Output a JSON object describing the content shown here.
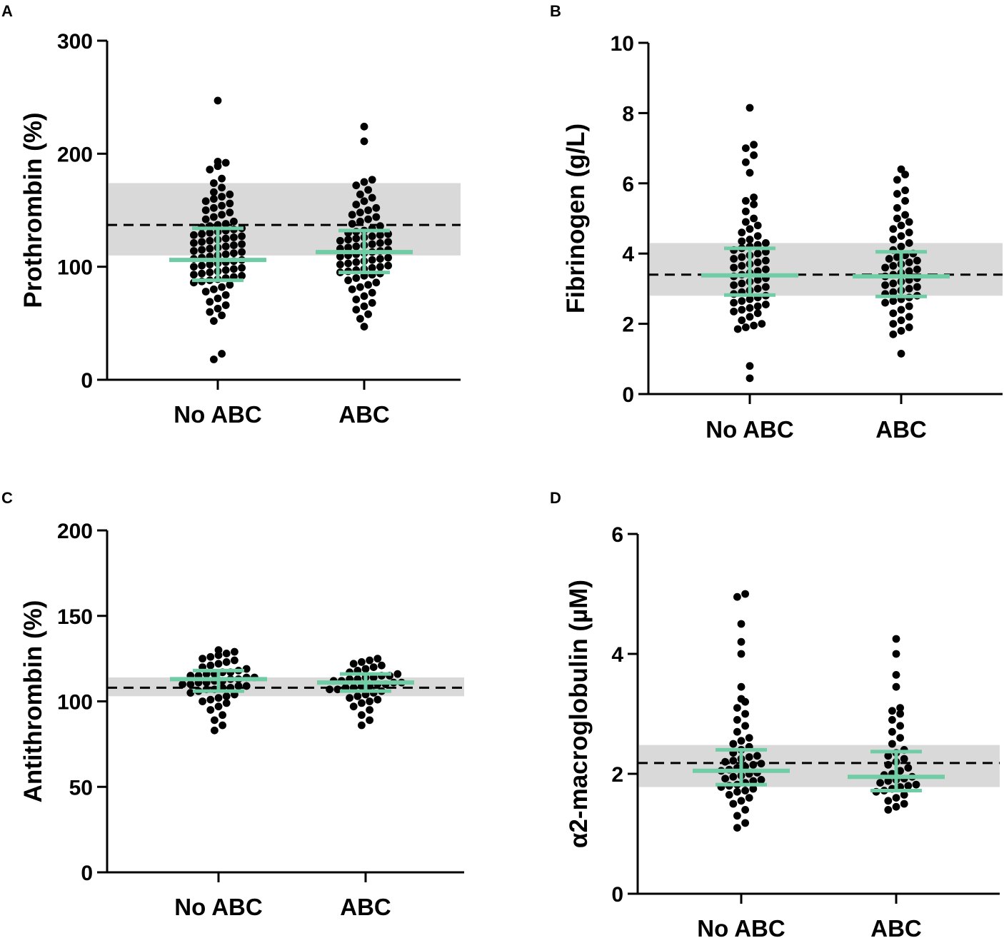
{
  "colors": {
    "summary": "#6fcca4",
    "reference_band": "#d9d9d9",
    "dots": "#000000",
    "axis": "#000000"
  },
  "chart_data": [
    {
      "panel": "A",
      "type": "scatter",
      "categories": [
        "No ABC",
        "ABC"
      ],
      "ylabel": "Prothrombin (%)",
      "ylim": [
        0,
        300
      ],
      "yticks": [
        0,
        100,
        200,
        300
      ],
      "reference": {
        "mean": 137,
        "low": 110,
        "high": 174
      },
      "summary": [
        {
          "category": "No ABC",
          "median": 106,
          "q1": 88,
          "q3": 134
        },
        {
          "category": "ABC",
          "median": 113,
          "q1": 95,
          "q3": 132
        }
      ],
      "points": [
        [
          18,
          23,
          52,
          57,
          60,
          63,
          66,
          69,
          72,
          75,
          78,
          80,
          82,
          84,
          86,
          87,
          88,
          89,
          90,
          91,
          92,
          93,
          94,
          95,
          96,
          97,
          98,
          99,
          100,
          101,
          102,
          103,
          104,
          105,
          106,
          107,
          108,
          109,
          110,
          111,
          112,
          113,
          114,
          115,
          116,
          117,
          118,
          119,
          120,
          121,
          122,
          123,
          124,
          125,
          126,
          127,
          128,
          129,
          130,
          131,
          132,
          133,
          134,
          135,
          136,
          137,
          138,
          140,
          142,
          144,
          146,
          148,
          150,
          152,
          154,
          156,
          158,
          160,
          162,
          164,
          166,
          170,
          174,
          178,
          186,
          189,
          192,
          193,
          247
        ],
        [
          47,
          54,
          58,
          62,
          65,
          68,
          71,
          74,
          77,
          80,
          82,
          84,
          86,
          88,
          90,
          92,
          93,
          94,
          95,
          96,
          97,
          98,
          99,
          100,
          101,
          102,
          103,
          104,
          105,
          106,
          107,
          108,
          109,
          110,
          111,
          112,
          113,
          114,
          115,
          116,
          117,
          118,
          119,
          120,
          121,
          122,
          123,
          124,
          125,
          126,
          127,
          128,
          129,
          130,
          131,
          132,
          134,
          136,
          138,
          140,
          142,
          144,
          146,
          148,
          150,
          152,
          155,
          158,
          161,
          164,
          168,
          172,
          175,
          177,
          211,
          224
        ]
      ]
    },
    {
      "panel": "B",
      "type": "scatter",
      "categories": [
        "No ABC",
        "ABC"
      ],
      "ylabel": "Fibrinogen (g/L)",
      "ylim": [
        0,
        10
      ],
      "yticks": [
        0,
        2,
        4,
        6,
        8,
        10
      ],
      "reference": {
        "mean": 3.4,
        "low": 2.8,
        "high": 4.3
      },
      "summary": [
        {
          "category": "No ABC",
          "median": 3.38,
          "q1": 2.82,
          "q3": 4.15
        },
        {
          "category": "ABC",
          "median": 3.35,
          "q1": 2.78,
          "q3": 4.05
        }
      ],
      "points": [
        [
          0.45,
          0.8,
          1.85,
          1.9,
          1.95,
          2.0,
          2.1,
          2.2,
          2.3,
          2.35,
          2.4,
          2.45,
          2.5,
          2.55,
          2.6,
          2.65,
          2.7,
          2.75,
          2.8,
          2.85,
          2.9,
          2.95,
          3.0,
          3.05,
          3.1,
          3.15,
          3.2,
          3.25,
          3.3,
          3.35,
          3.4,
          3.45,
          3.5,
          3.55,
          3.6,
          3.65,
          3.7,
          3.75,
          3.8,
          3.85,
          3.9,
          3.95,
          4.0,
          4.05,
          4.1,
          4.15,
          4.2,
          4.25,
          4.3,
          4.35,
          4.4,
          4.5,
          4.6,
          4.7,
          4.8,
          4.9,
          5.0,
          5.2,
          5.4,
          5.5,
          5.6,
          6.3,
          6.6,
          6.8,
          7.0,
          7.1,
          8.15
        ],
        [
          1.15,
          1.7,
          1.8,
          1.9,
          2.0,
          2.1,
          2.2,
          2.3,
          2.4,
          2.5,
          2.6,
          2.65,
          2.7,
          2.75,
          2.8,
          2.85,
          2.9,
          2.95,
          3.0,
          3.05,
          3.1,
          3.15,
          3.2,
          3.25,
          3.3,
          3.35,
          3.4,
          3.45,
          3.5,
          3.55,
          3.6,
          3.65,
          3.7,
          3.75,
          3.8,
          3.85,
          3.9,
          3.95,
          4.0,
          4.1,
          4.2,
          4.3,
          4.4,
          4.5,
          4.6,
          4.7,
          4.8,
          4.9,
          5.0,
          5.1,
          5.3,
          5.5,
          5.7,
          5.8,
          6.1,
          6.25,
          6.4
        ]
      ]
    },
    {
      "panel": "C",
      "type": "scatter",
      "categories": [
        "No ABC",
        "ABC"
      ],
      "ylabel": "Antithrombin (%)",
      "ylim": [
        0,
        200
      ],
      "yticks": [
        0,
        50,
        100,
        150,
        200
      ],
      "reference": {
        "mean": 108,
        "low": 103,
        "high": 114
      },
      "summary": [
        {
          "category": "No ABC",
          "median": 113,
          "q1": 106,
          "q3": 118
        },
        {
          "category": "ABC",
          "median": 111,
          "q1": 106,
          "q3": 116
        }
      ],
      "points": [
        [
          83,
          86,
          89,
          92,
          95,
          97,
          99,
          100,
          101,
          102,
          103,
          104,
          105,
          106,
          107,
          107,
          108,
          108,
          109,
          109,
          110,
          110,
          111,
          111,
          112,
          112,
          113,
          113,
          114,
          114,
          115,
          115,
          116,
          116,
          117,
          117,
          118,
          119,
          120,
          121,
          122,
          123,
          124,
          125,
          126,
          127,
          128,
          129,
          130
        ],
        [
          86,
          89,
          92,
          95,
          97,
          99,
          100,
          101,
          102,
          103,
          104,
          105,
          106,
          107,
          107,
          108,
          108,
          109,
          109,
          110,
          110,
          111,
          111,
          112,
          112,
          113,
          113,
          114,
          114,
          115,
          115,
          116,
          117,
          118,
          119,
          120,
          121,
          122,
          123,
          124,
          125
        ]
      ]
    },
    {
      "panel": "D",
      "type": "scatter",
      "categories": [
        "No ABC",
        "ABC"
      ],
      "ylabel": "α2-macroglobulin (µM)",
      "ylim": [
        0,
        6
      ],
      "yticks": [
        0,
        2,
        4,
        6
      ],
      "reference": {
        "mean": 2.18,
        "low": 1.78,
        "high": 2.48
      },
      "summary": [
        {
          "category": "No ABC",
          "median": 2.05,
          "q1": 1.82,
          "q3": 2.4
        },
        {
          "category": "ABC",
          "median": 1.95,
          "q1": 1.72,
          "q3": 2.37
        }
      ],
      "points": [
        [
          1.1,
          1.18,
          1.3,
          1.4,
          1.5,
          1.55,
          1.6,
          1.65,
          1.7,
          1.72,
          1.75,
          1.78,
          1.8,
          1.82,
          1.85,
          1.88,
          1.9,
          1.92,
          1.95,
          1.97,
          2.0,
          2.02,
          2.05,
          2.07,
          2.1,
          2.12,
          2.15,
          2.17,
          2.2,
          2.22,
          2.25,
          2.28,
          2.3,
          2.35,
          2.4,
          2.45,
          2.5,
          2.55,
          2.6,
          2.7,
          2.8,
          2.9,
          3.0,
          3.1,
          3.2,
          3.25,
          3.45,
          4.0,
          4.2,
          4.5,
          4.95,
          5.0
        ],
        [
          1.4,
          1.45,
          1.5,
          1.55,
          1.6,
          1.65,
          1.7,
          1.72,
          1.75,
          1.78,
          1.8,
          1.82,
          1.85,
          1.88,
          1.9,
          1.92,
          1.95,
          1.98,
          2.0,
          2.05,
          2.1,
          2.15,
          2.2,
          2.25,
          2.3,
          2.35,
          2.4,
          2.5,
          2.6,
          2.7,
          2.8,
          2.9,
          3.0,
          3.05,
          3.1,
          3.45,
          3.65,
          4.0,
          4.25
        ]
      ]
    }
  ]
}
